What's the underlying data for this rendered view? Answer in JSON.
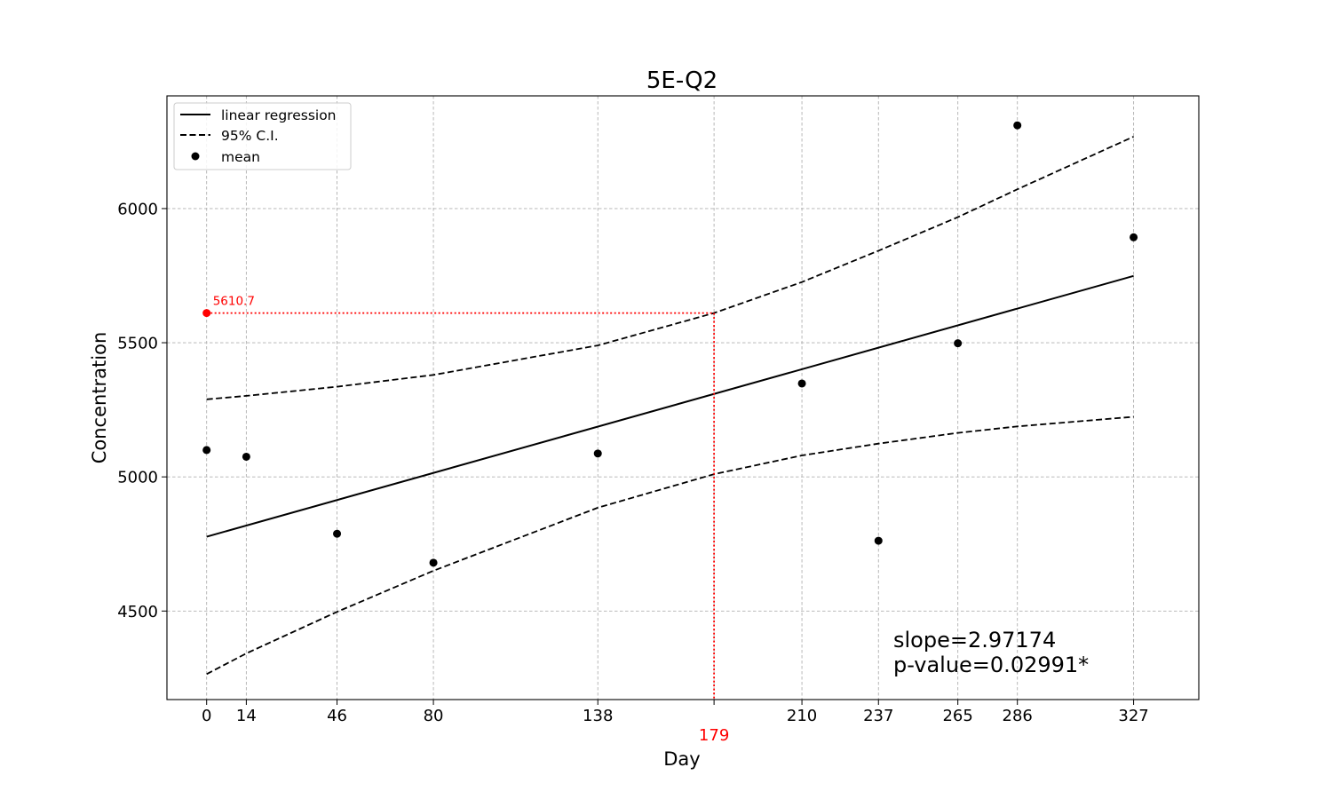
{
  "chart_data": {
    "type": "scatter",
    "title": "5E-Q2",
    "xlabel": "Day",
    "ylabel": "Concentration",
    "xlim": [
      -14,
      350
    ],
    "ylim": [
      4170,
      6420
    ],
    "xticks": [
      0,
      14,
      46,
      80,
      138,
      210,
      237,
      265,
      286,
      327
    ],
    "yticks": [
      4500,
      5000,
      5500,
      6000
    ],
    "grid": true,
    "legend_position": "top-left",
    "legend": [
      "linear regression",
      "95% C.I.",
      "mean"
    ],
    "series": [
      {
        "name": "mean",
        "kind": "scatter",
        "x": [
          0,
          14,
          46,
          80,
          138,
          210,
          237,
          265,
          286,
          327
        ],
        "y": [
          5100,
          5075,
          4788,
          4680,
          5087,
          5348,
          4762,
          5498,
          6310,
          5893
        ]
      },
      {
        "name": "linear regression",
        "kind": "line",
        "x": [
          0,
          327
        ],
        "y": [
          4777,
          5749
        ]
      },
      {
        "name": "95% C.I.",
        "kind": "dashed",
        "x": [
          0,
          14,
          46,
          80,
          138,
          179,
          210,
          237,
          265,
          286,
          327
        ],
        "y_upper": [
          5289,
          5302,
          5336,
          5380,
          5490,
          5610.7,
          5726,
          5843,
          5968,
          6072,
          6268
        ],
        "y_lower": [
          4265,
          4342,
          4497,
          4650,
          4885,
          5010,
          5080,
          5124,
          5164,
          5188,
          5224
        ]
      }
    ],
    "annotations": {
      "highlight_value": 5610.7,
      "highlight_value_label": "5610.7",
      "highlight_day": 179,
      "highlight_day_label": "179",
      "highlight_color": "#ff0000",
      "slope_text": "slope=2.97174",
      "pvalue_text": "p-value=0.02991*"
    }
  }
}
